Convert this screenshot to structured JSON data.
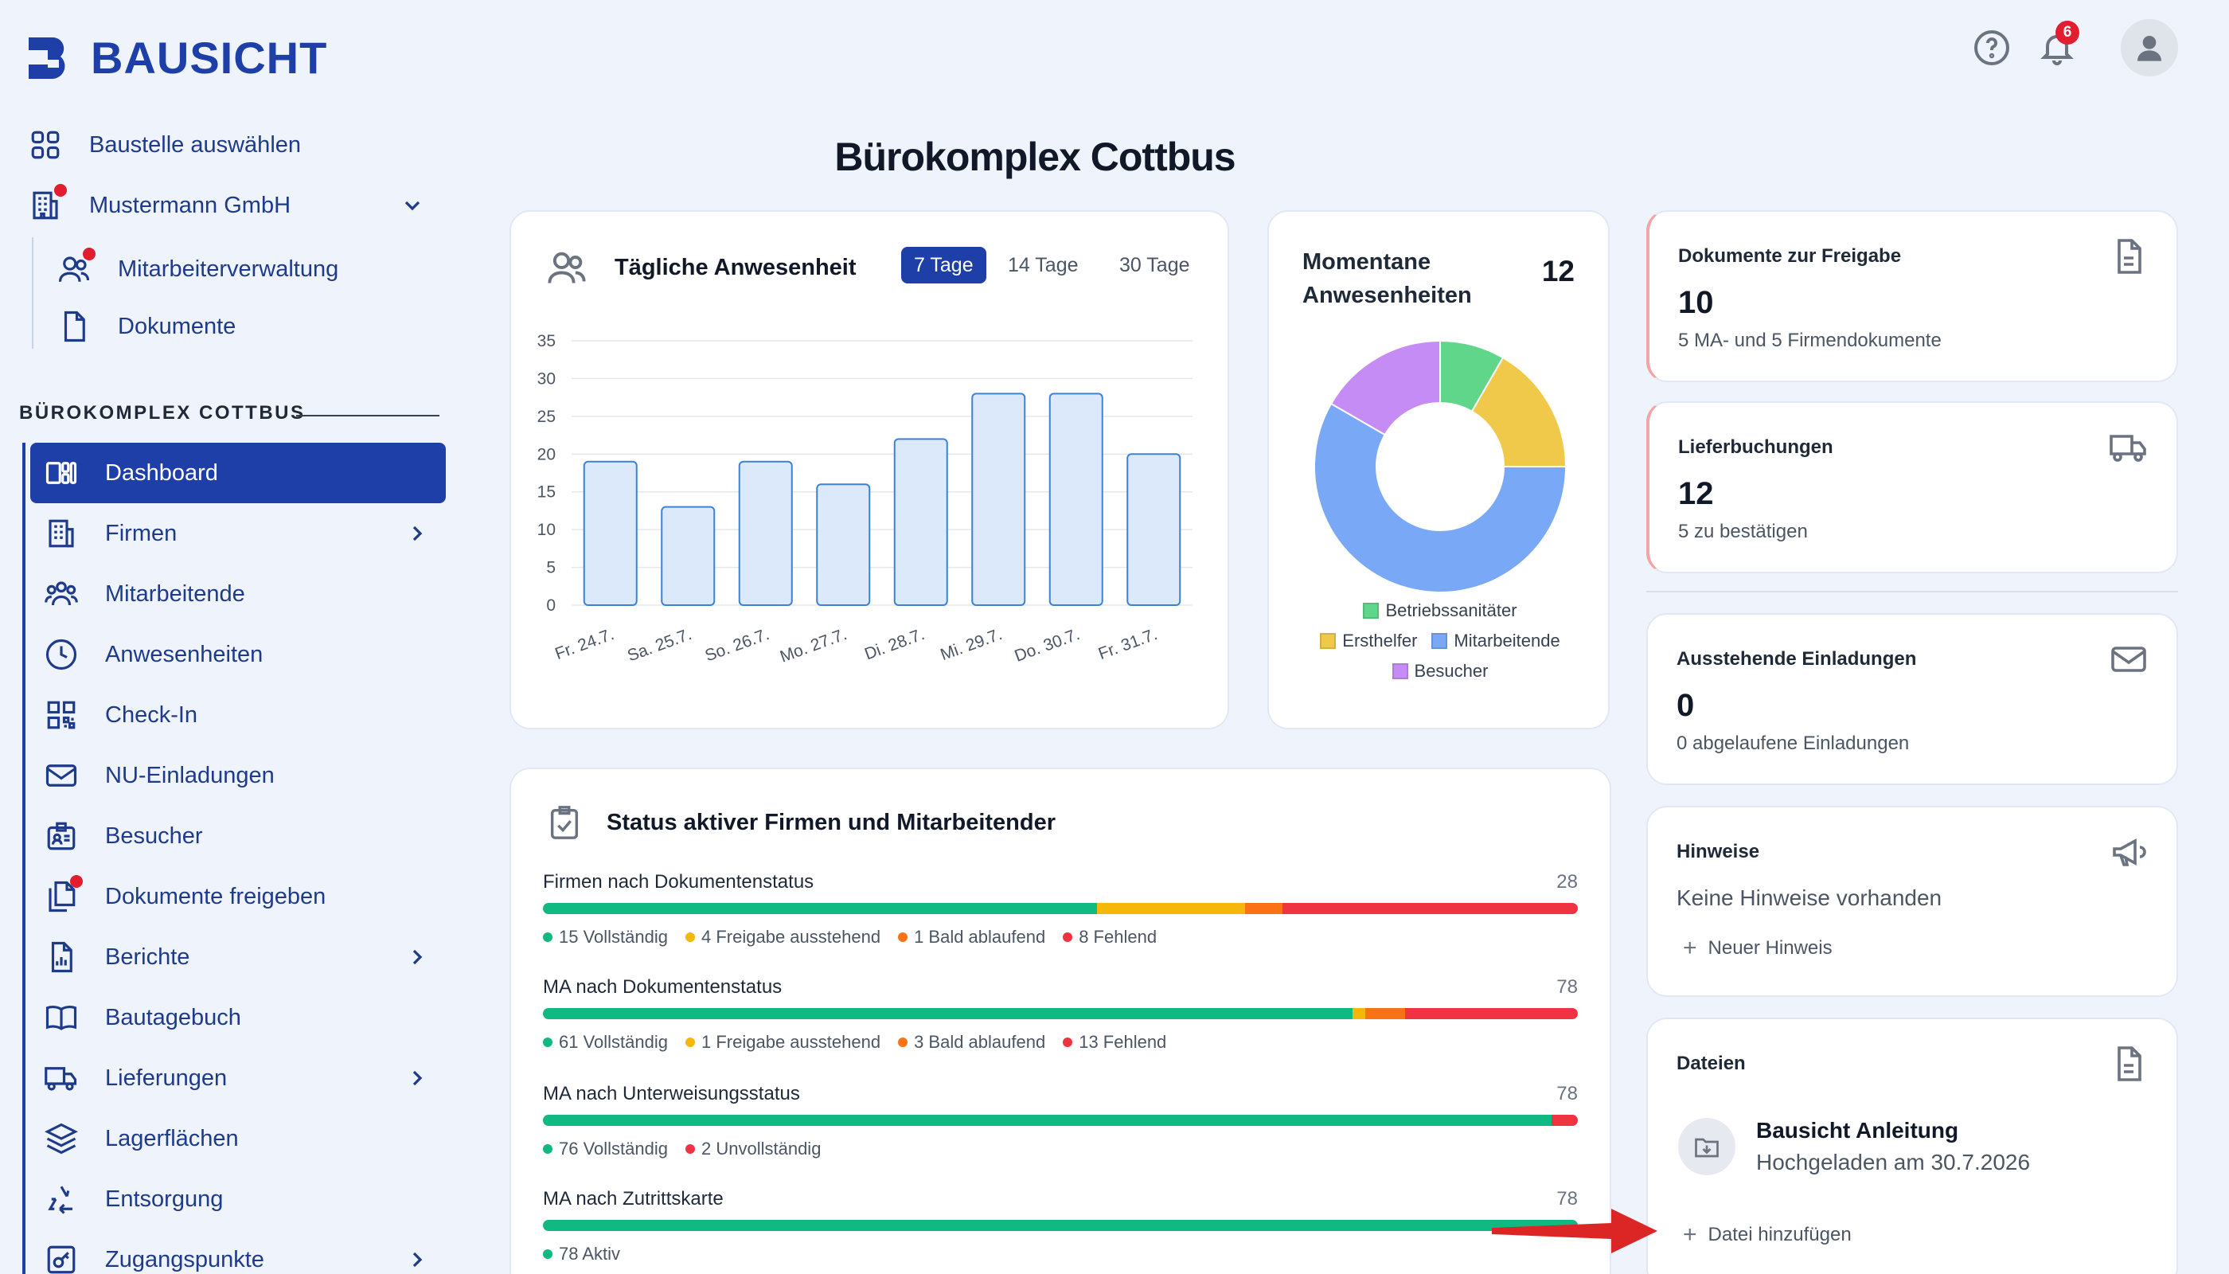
{
  "app": {
    "name": "BAUSICHT"
  },
  "top": {
    "notifications_count": "6"
  },
  "page": {
    "title": "Bürokomplex Cottbus"
  },
  "sidebar": {
    "select_site": "Baustelle auswählen",
    "company": "Mustermann GmbH",
    "sub_items": [
      "Mitarbeiterverwaltung",
      "Dokumente"
    ],
    "section_title": "BÜROKOMPLEX COTTBUS",
    "nav": [
      "Dashboard",
      "Firmen",
      "Mitarbeitende",
      "Anwesenheiten",
      "Check-In",
      "NU-Einladungen",
      "Besucher",
      "Dokumente freigeben",
      "Berichte",
      "Bautagebuch",
      "Lieferungen",
      "Lagerflächen",
      "Entsorgung",
      "Zugangspunkte"
    ]
  },
  "attendance": {
    "title": "Tägliche Anwesenheit",
    "ranges": [
      "7 Tage",
      "14 Tage",
      "30 Tage"
    ],
    "active_range": "7 Tage"
  },
  "presence": {
    "title": "Momentane Anwesenheiten",
    "count": "12",
    "legend": [
      "Betriebssanitäter",
      "Ersthelfer",
      "Mitarbeitende",
      "Besucher"
    ]
  },
  "status": {
    "title": "Status aktiver Firmen und Mitarbeitender",
    "rows": [
      {
        "label": "Firmen nach Dokumentenstatus",
        "count": "28",
        "segments": [
          {
            "value": 15,
            "color": "#10b981",
            "text": "15 Vollständig"
          },
          {
            "value": 4,
            "color": "#f5b70b",
            "text": "4 Freigabe ausstehend"
          },
          {
            "value": 1,
            "color": "#f97316",
            "text": "1 Bald ablaufend"
          },
          {
            "value": 8,
            "color": "#ef3340",
            "text": "8 Fehlend"
          }
        ]
      },
      {
        "label": "MA nach Dokumentenstatus",
        "count": "78",
        "segments": [
          {
            "value": 61,
            "color": "#10b981",
            "text": "61 Vollständig"
          },
          {
            "value": 1,
            "color": "#f5b70b",
            "text": "1 Freigabe ausstehend"
          },
          {
            "value": 3,
            "color": "#f97316",
            "text": "3 Bald ablaufend"
          },
          {
            "value": 13,
            "color": "#ef3340",
            "text": "13 Fehlend"
          }
        ]
      },
      {
        "label": "MA nach Unterweisungsstatus",
        "count": "78",
        "segments": [
          {
            "value": 76,
            "color": "#10b981",
            "text": "76 Vollständig"
          },
          {
            "value": 2,
            "color": "#ef3340",
            "text": "2 Unvollständig"
          }
        ]
      },
      {
        "label": "MA nach Zutrittskarte",
        "count": "78",
        "segments": [
          {
            "value": 78,
            "color": "#10b981",
            "text": "78 Aktiv"
          }
        ]
      }
    ]
  },
  "cards": {
    "docs": {
      "title": "Dokumente zur Freigabe",
      "value": "10",
      "sub": "5 MA- und 5 Firmendokumente"
    },
    "deliveries": {
      "title": "Lieferbuchungen",
      "value": "12",
      "sub": "5 zu bestätigen"
    },
    "invites": {
      "title": "Ausstehende Einladungen",
      "value": "0",
      "sub": "0 abgelaufene Einladungen"
    },
    "notes": {
      "title": "Hinweise",
      "empty": "Keine Hinweise vorhanden",
      "add": "Neuer Hinweis"
    },
    "files": {
      "title": "Dateien",
      "file_name": "Bausicht Anleitung",
      "file_date": "Hochgeladen am 30.7.2026",
      "add": "Datei hinzufügen"
    }
  },
  "chart_data": [
    {
      "type": "bar",
      "categories": [
        "Fr. 24.7.",
        "Sa. 25.7.",
        "So. 26.7.",
        "Mo. 27.7.",
        "Di. 28.7.",
        "Mi. 29.7.",
        "Do. 30.7.",
        "Fr. 31.7."
      ],
      "values": [
        19,
        13,
        19,
        16,
        22,
        28,
        28,
        20
      ],
      "ylim": [
        0,
        35
      ],
      "yticks": [
        0,
        5,
        10,
        15,
        20,
        25,
        30,
        35
      ],
      "grid": true,
      "bar_color": "#dce9fb",
      "bar_stroke": "#3b82d6"
    },
    {
      "type": "pie",
      "donut": true,
      "labels": [
        "Betriebssanitäter",
        "Ersthelfer",
        "Mitarbeitende",
        "Besucher"
      ],
      "values": [
        1,
        2,
        7,
        2
      ],
      "colors": [
        "#5fd68a",
        "#f0c94a",
        "#78a8f6",
        "#c68cf5"
      ]
    }
  ]
}
